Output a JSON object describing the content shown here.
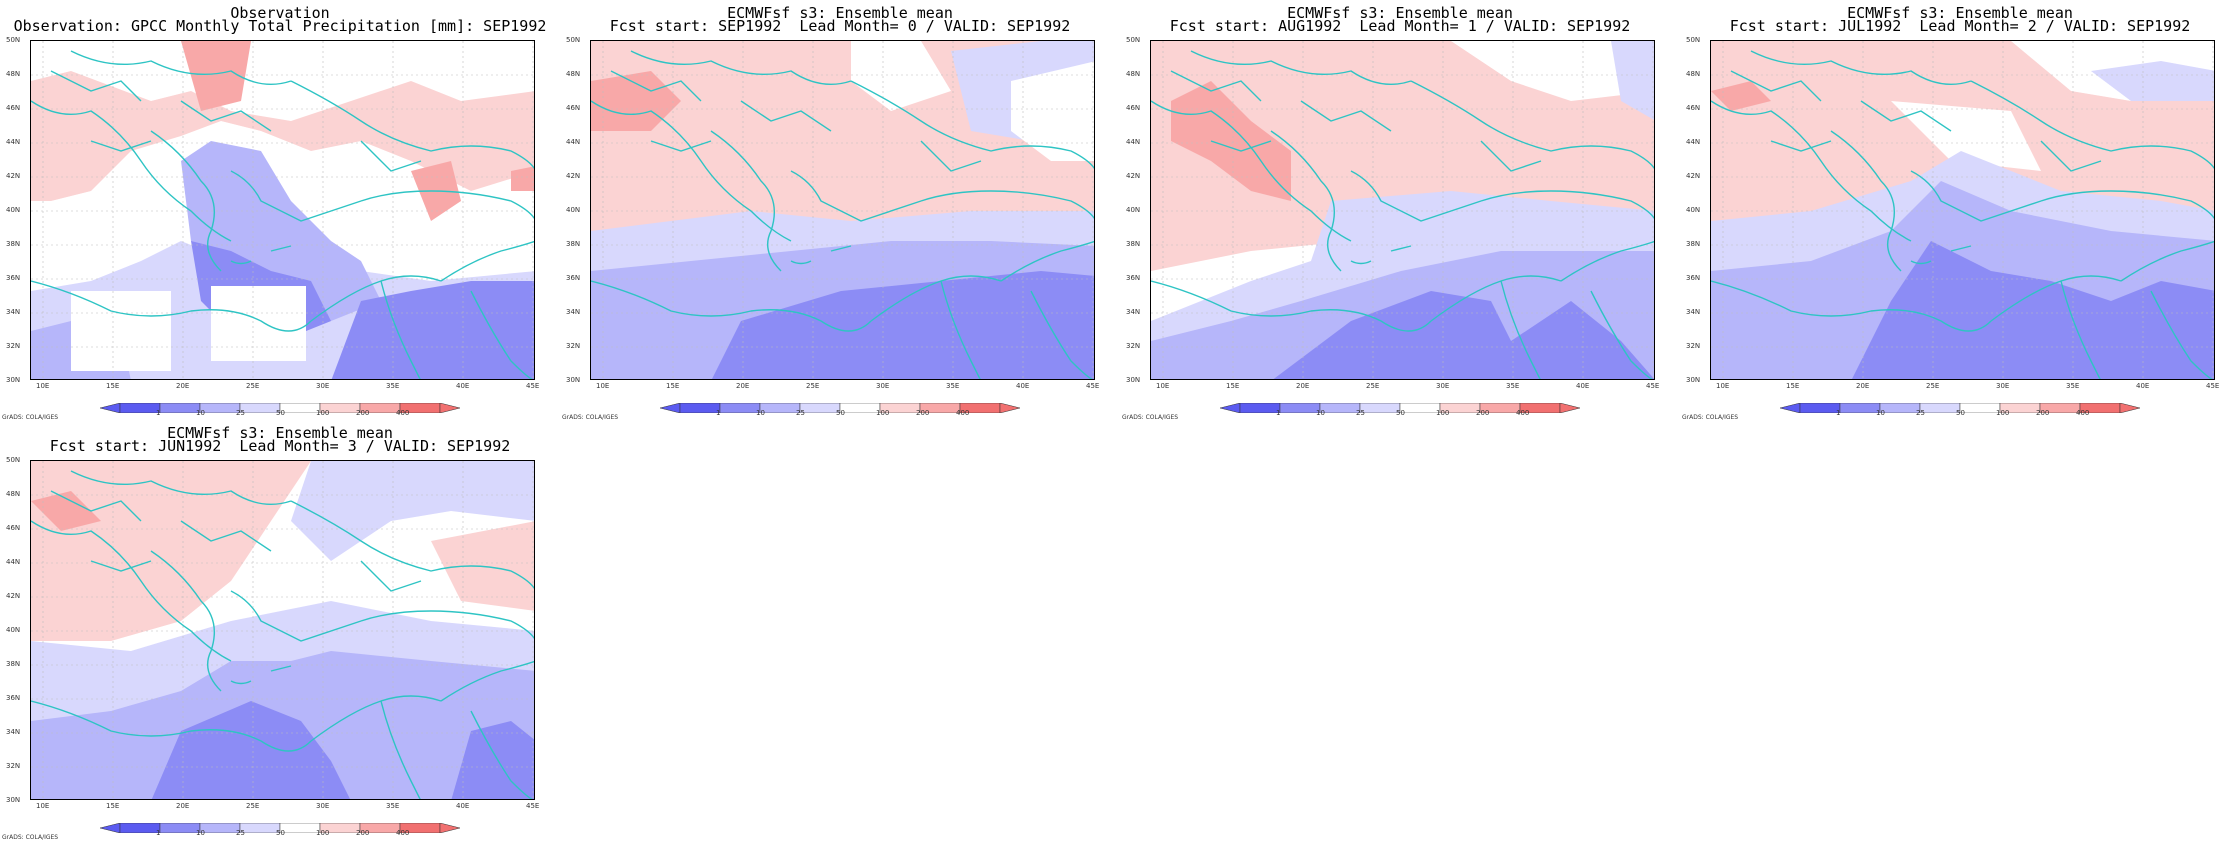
{
  "colors": {
    "coast": "#2ec4c4",
    "grid": "#bdbdbd",
    "scale": [
      "#5b5bf0",
      "#8c8cf5",
      "#b6b6fa",
      "#d8d8fd",
      "#ffffff",
      "#fbd3d3",
      "#f8a8a8",
      "#f17070"
    ]
  },
  "panels": [
    {
      "title1": "Observation",
      "title2": "Observation: GPCC Monthly Total Precipitation [mm]: SEP1992",
      "pattern": "obs"
    },
    {
      "title1": "ECMWFsf s3: Ensemble mean",
      "title2": "Fcst start: SEP1992  Lead Month= 0 / VALID: SEP1992",
      "pattern": "lead0"
    },
    {
      "title1": "ECMWFsf s3: Ensemble mean",
      "title2": "Fcst start: AUG1992  Lead Month= 1 / VALID: SEP1992",
      "pattern": "lead1"
    },
    {
      "title1": "ECMWFsf s3: Ensemble mean",
      "title2": "Fcst start: JUL1992  Lead Month= 2 / VALID: SEP1992",
      "pattern": "lead2"
    },
    {
      "title1": "ECMWFsf s3: Ensemble mean",
      "title2": "Fcst start: JUN1992  Lead Month= 3 / VALID: SEP1992",
      "pattern": "lead3"
    }
  ],
  "axes": {
    "lat_labels": [
      "50N",
      "48N",
      "46N",
      "44N",
      "42N",
      "40N",
      "38N",
      "36N",
      "34N",
      "32N",
      "30N"
    ],
    "lon_labels": [
      "10E",
      "15E",
      "20E",
      "25E",
      "30E",
      "35E",
      "40E",
      "45E"
    ]
  },
  "colorbar": {
    "labels": [
      "1",
      "10",
      "25",
      "50",
      "100",
      "200",
      "400"
    ]
  },
  "credit": "GrADS: COLA/IGES"
}
